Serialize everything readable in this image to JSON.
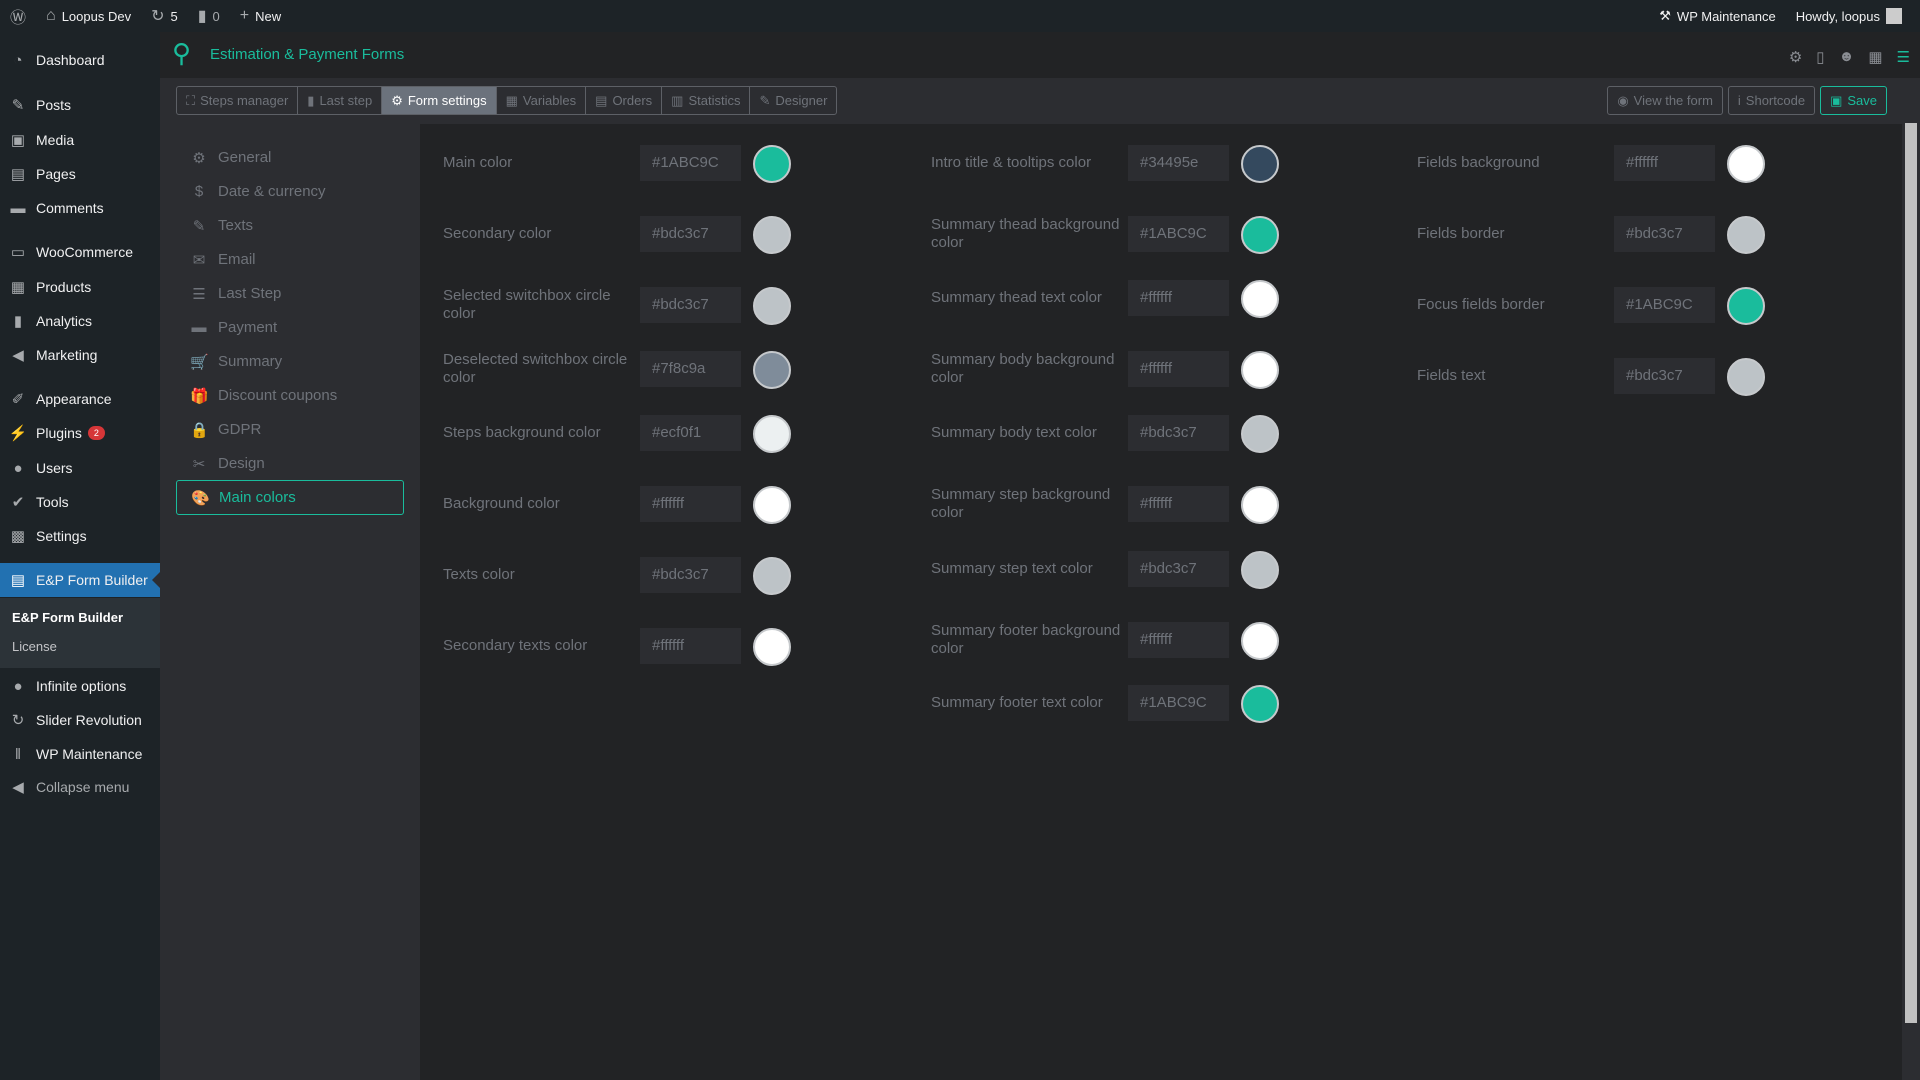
{
  "adminbar": {
    "site": "Loopus Dev",
    "updates": "5",
    "comments": "0",
    "new": "New",
    "maintenance": "WP Maintenance",
    "howdy": "Howdy, loopus"
  },
  "sidebar": {
    "items": [
      {
        "label": "Dashboard",
        "icon": "dashboard-icon",
        "g": "◔"
      },
      {
        "label": "Posts",
        "icon": "pin-icon",
        "g": "✎"
      },
      {
        "label": "Media",
        "icon": "media-icon",
        "g": "▣"
      },
      {
        "label": "Pages",
        "icon": "pages-icon",
        "g": "▤"
      },
      {
        "label": "Comments",
        "icon": "comment-icon",
        "g": "▬"
      },
      {
        "label": "WooCommerce",
        "icon": "woo-icon",
        "g": "▭"
      },
      {
        "label": "Products",
        "icon": "products-icon",
        "g": "▦"
      },
      {
        "label": "Analytics",
        "icon": "analytics-icon",
        "g": "▮"
      },
      {
        "label": "Marketing",
        "icon": "megaphone-icon",
        "g": "◀"
      },
      {
        "label": "Appearance",
        "icon": "brush-icon",
        "g": "✐"
      },
      {
        "label": "Plugins",
        "icon": "plug-icon",
        "g": "⚡",
        "badge": "2"
      },
      {
        "label": "Users",
        "icon": "user-icon",
        "g": "●"
      },
      {
        "label": "Tools",
        "icon": "wrench-icon",
        "g": "✔"
      },
      {
        "label": "Settings",
        "icon": "settings-icon",
        "g": "▩"
      },
      {
        "label": "E&P Form Builder",
        "icon": "form-icon",
        "g": "▤"
      },
      {
        "label": "Infinite options",
        "icon": "bulb-icon",
        "g": "●"
      },
      {
        "label": "Slider Revolution",
        "icon": "refresh-icon",
        "g": "↻"
      },
      {
        "label": "WP Maintenance",
        "icon": "tools-icon",
        "g": "‖"
      },
      {
        "label": "Collapse menu",
        "icon": "collapse-icon",
        "g": "◀"
      }
    ],
    "submenu": [
      "E&P Form Builder",
      "License"
    ]
  },
  "header": {
    "title": "Estimation & Payment Forms"
  },
  "tabs": [
    {
      "label": "Steps manager",
      "g": "⛶"
    },
    {
      "label": "Last step",
      "g": "▮"
    },
    {
      "label": "Form settings",
      "g": "⚙"
    },
    {
      "label": "Variables",
      "g": "▦"
    },
    {
      "label": "Orders",
      "g": "▤"
    },
    {
      "label": "Statistics",
      "g": "▥"
    },
    {
      "label": "Designer",
      "g": "✎"
    }
  ],
  "actions": {
    "view": "View the form",
    "shortcode": "Shortcode",
    "save": "Save"
  },
  "leftnav": [
    {
      "label": "General",
      "g": "⚙"
    },
    {
      "label": "Date & currency",
      "g": "$"
    },
    {
      "label": "Texts",
      "g": "✎"
    },
    {
      "label": "Email",
      "g": "✉"
    },
    {
      "label": "Last Step",
      "g": "☰"
    },
    {
      "label": "Payment",
      "g": "▬"
    },
    {
      "label": "Summary",
      "g": "🛒"
    },
    {
      "label": "Discount coupons",
      "g": "🎁"
    },
    {
      "label": "GDPR",
      "g": "🔒"
    },
    {
      "label": "Design",
      "g": "✂"
    },
    {
      "label": "Main colors",
      "g": "🎨"
    }
  ],
  "colors": [
    [
      {
        "label": "Main color",
        "value": "#1ABC9C"
      },
      {
        "label": "Secondary color",
        "value": "#bdc3c7"
      },
      {
        "label": "Selected switchbox circle color",
        "value": "#bdc3c7"
      },
      {
        "label": "Deselected switchbox circle color",
        "value": "#7f8c9a"
      },
      {
        "label": "Steps background color",
        "value": "#ecf0f1"
      },
      {
        "label": "Background color",
        "value": "#ffffff"
      },
      {
        "label": "Texts color",
        "value": "#bdc3c7"
      },
      {
        "label": "Secondary texts color",
        "value": "#ffffff"
      }
    ],
    [
      {
        "label": "Intro title & tooltips color",
        "value": "#34495e"
      },
      {
        "label": "Summary thead background color",
        "value": "#1ABC9C"
      },
      {
        "label": "Summary thead text color",
        "value": "#ffffff"
      },
      {
        "label": "Summary body background color",
        "value": "#ffffff"
      },
      {
        "label": "Summary body text color",
        "value": "#bdc3c7"
      },
      {
        "label": "Summary step background color",
        "value": "#ffffff"
      },
      {
        "label": "Summary step text color",
        "value": "#bdc3c7"
      },
      {
        "label": "Summary footer background color",
        "value": "#ffffff"
      },
      {
        "label": "Summary footer text color",
        "value": "#1ABC9C"
      }
    ],
    [
      {
        "label": "Fields background",
        "value": "#ffffff"
      },
      {
        "label": "Fields border",
        "value": "#bdc3c7"
      },
      {
        "label": "Focus fields border",
        "value": "#1ABC9C"
      },
      {
        "label": "Fields text",
        "value": "#bdc3c7"
      }
    ]
  ],
  "accent": "#1abc9c"
}
